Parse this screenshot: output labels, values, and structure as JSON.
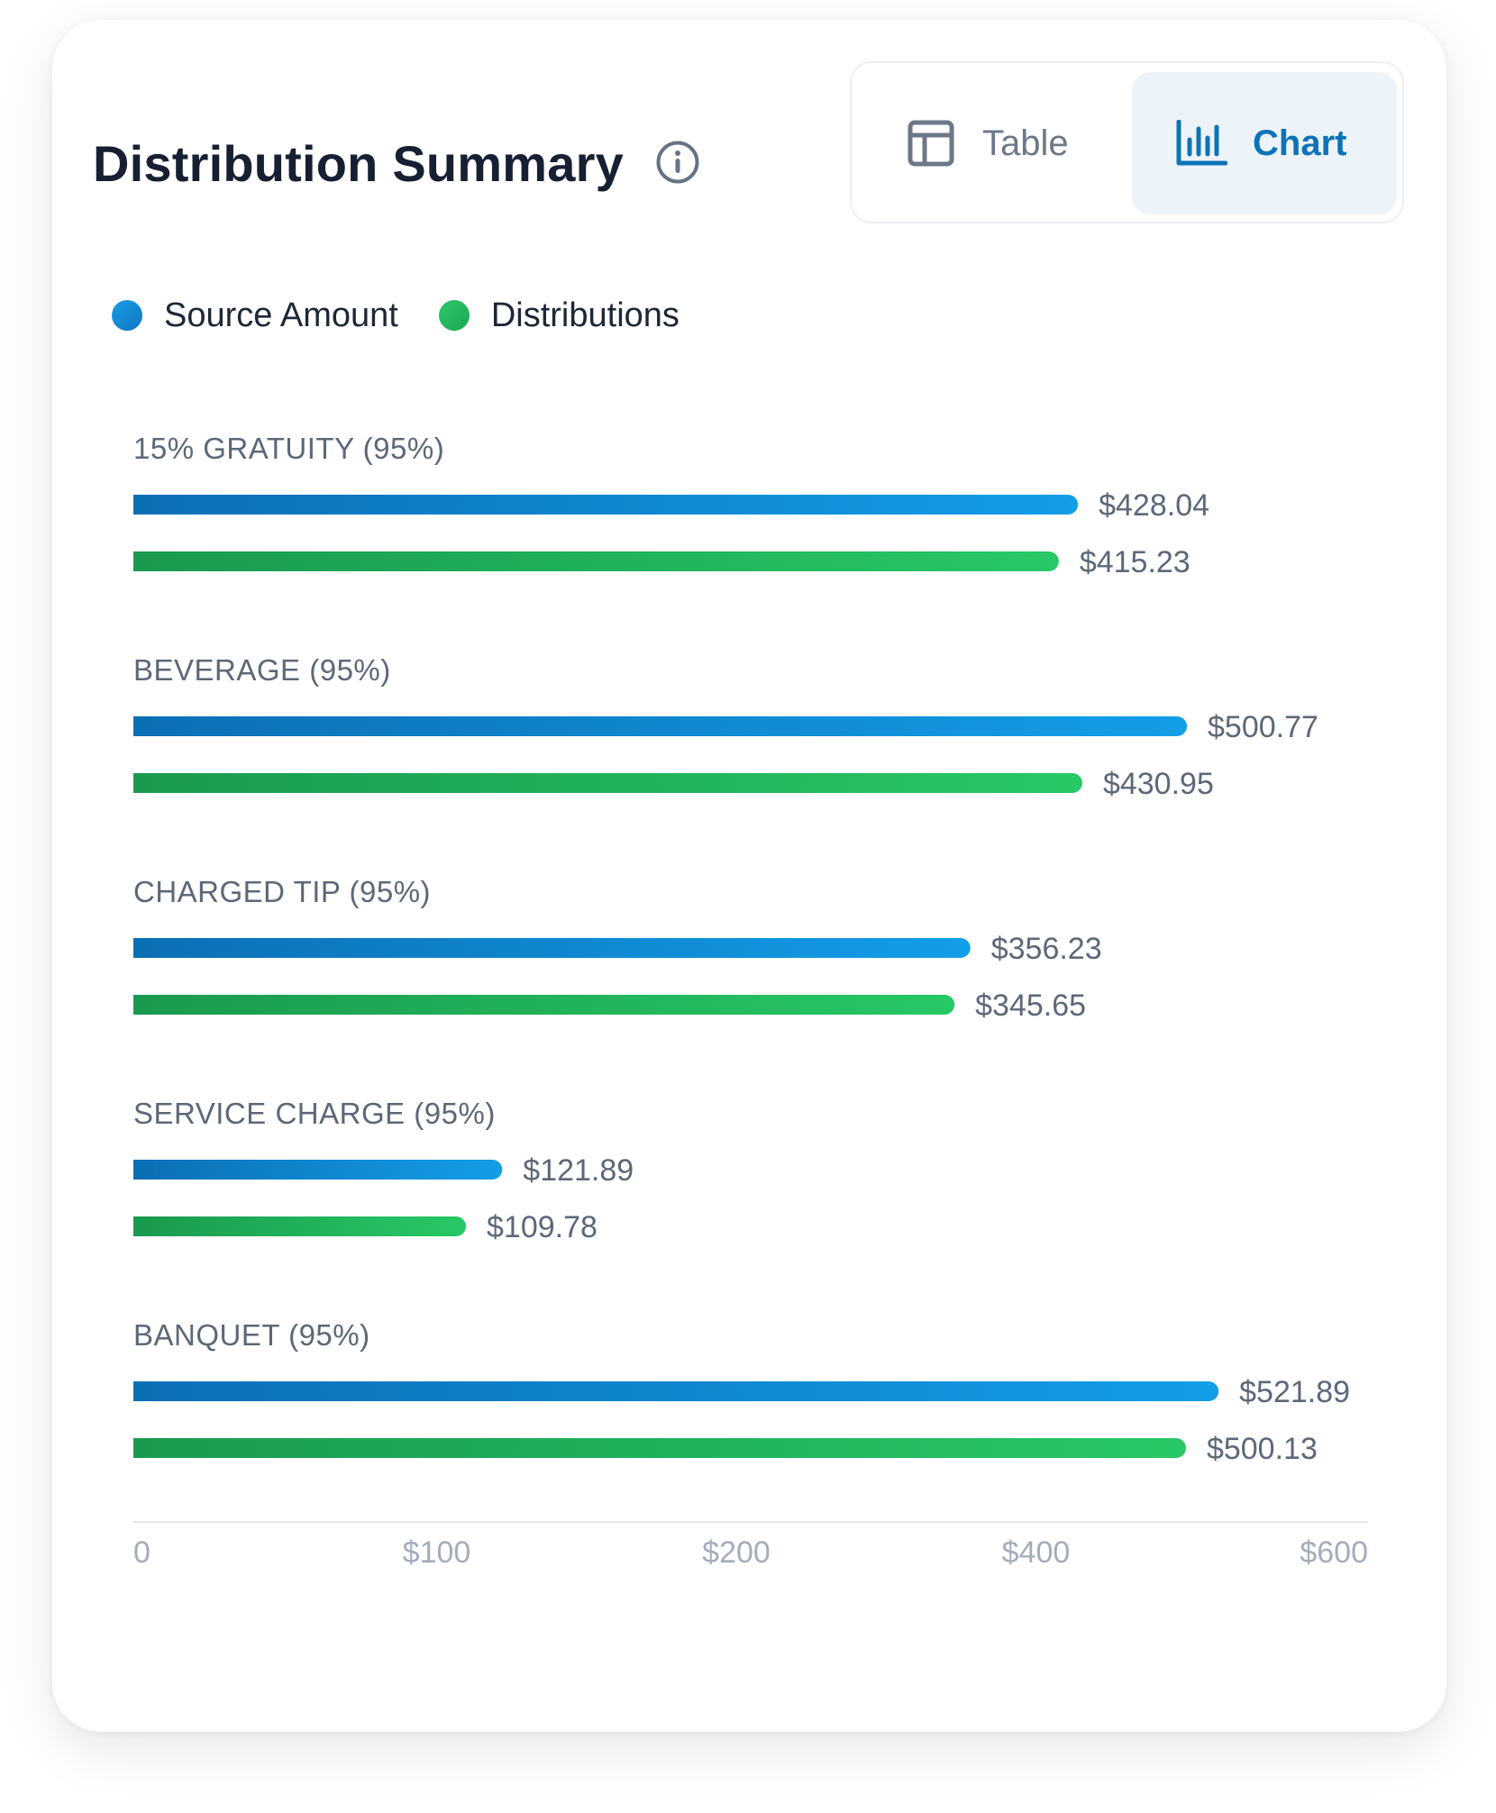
{
  "header": {
    "title": "Distribution Summary",
    "info_icon": "info-circle-icon"
  },
  "view_toggle": {
    "options": [
      {
        "label": "Table",
        "icon": "table-layout-icon",
        "active": false
      },
      {
        "label": "Chart",
        "icon": "bar-chart-icon",
        "active": true
      }
    ]
  },
  "colors": {
    "source": "#0f8ad6",
    "distributions": "#22b45a",
    "accent": "#0e73b8",
    "active_tab_bg": "#edf4f9"
  },
  "chart_data": {
    "type": "bar",
    "orientation": "horizontal",
    "categories": [
      "15% GRATUITY (95%)",
      "BEVERAGE (95%)",
      "CHARGED TIP (95%)",
      "SERVICE CHARGE (95%)",
      "BANQUET (95%)"
    ],
    "series": [
      {
        "name": "Source Amount",
        "color": "#0f8ad6",
        "values": [
          428.04,
          500.77,
          356.23,
          121.89,
          521.89
        ],
        "labels": [
          "$428.04",
          "$500.77",
          "$356.23",
          "$121.89",
          "$521.89"
        ]
      },
      {
        "name": "Distributions",
        "color": "#22b45a",
        "values": [
          415.23,
          430.95,
          345.65,
          109.78,
          500.13
        ],
        "labels": [
          "$415.23",
          "$430.95",
          "$345.65",
          "$109.78",
          "$500.13"
        ]
      }
    ],
    "x_ticks": [
      {
        "value": 0,
        "label": "0"
      },
      {
        "value": 100,
        "label": "$100"
      },
      {
        "value": 200,
        "label": "$200"
      },
      {
        "value": 400,
        "label": "$400"
      },
      {
        "value": 600,
        "label": "$600"
      }
    ],
    "xlim": [
      0,
      600
    ],
    "grid": false,
    "legend_position": "top-left"
  }
}
